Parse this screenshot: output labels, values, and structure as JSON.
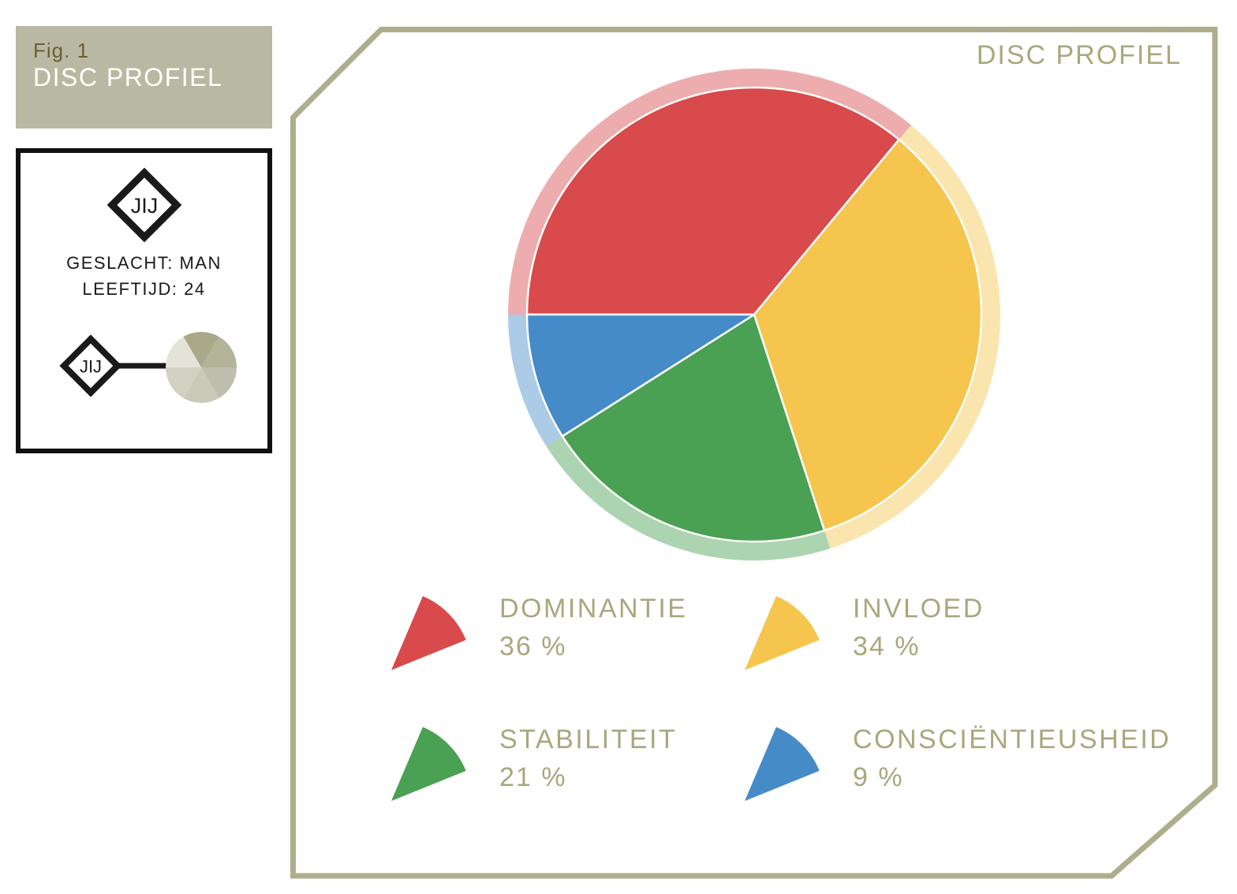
{
  "fig_box": {
    "fig_label": "Fig. 1",
    "title": "DISC PROFIEL",
    "bg_color": "#b9b9a3",
    "fig_label_color": "#6e5d36"
  },
  "profile_box": {
    "marker_label": "JIJ",
    "gender_line": "GESLACHT: MAN",
    "age_line": "LEEFTIJD: 24",
    "mini_marker_label": "JIJ",
    "mini_pie_shades": [
      "#a9a989",
      "#b3b398",
      "#bdbeae",
      "#cacab8",
      "#d2d2c4",
      "#e3e3d8"
    ]
  },
  "panel": {
    "title": "DISC PROFIEL",
    "border_color": "#aeae8c",
    "accent_text_color": "#a8a87e"
  },
  "chart_data": {
    "type": "pie",
    "title": "DISC PROFIEL",
    "start_angle_deg": 270,
    "direction": "clockwise",
    "halo_ring": true,
    "halo_opacity": 0.45,
    "series": [
      {
        "label": "DOMINANTIE",
        "value": 36,
        "color": "#d84a4b"
      },
      {
        "label": "INVLOED",
        "value": 34,
        "color": "#f5c54e"
      },
      {
        "label": "STABILITEIT",
        "value": 21,
        "color": "#4aa053"
      },
      {
        "label": "CONSCIËNTIEUSHEID",
        "value": 9,
        "color": "#458bc8"
      }
    ]
  },
  "legend": {
    "items": [
      {
        "label": "DOMINANTIE",
        "value_text": "36 %",
        "color": "#d84a4b"
      },
      {
        "label": "INVLOED",
        "value_text": "34 %",
        "color": "#f5c54e"
      },
      {
        "label": "STABILITEIT",
        "value_text": "21 %",
        "color": "#4aa053"
      },
      {
        "label": "CONSCIËNTIEUSHEID",
        "value_text": "9 %",
        "color": "#458bc8"
      }
    ]
  }
}
